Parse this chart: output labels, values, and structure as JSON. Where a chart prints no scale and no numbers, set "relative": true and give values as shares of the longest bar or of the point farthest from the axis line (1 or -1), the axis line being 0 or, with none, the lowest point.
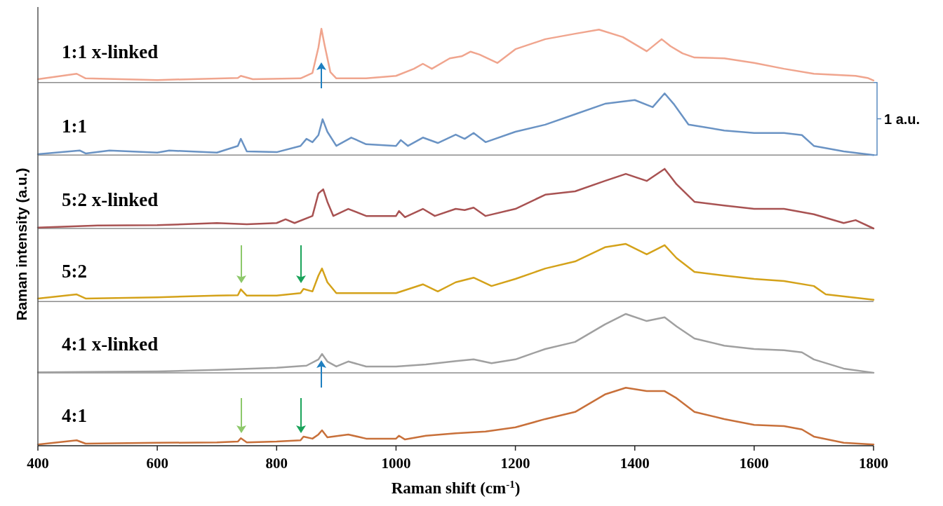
{
  "chart_data": {
    "type": "line",
    "relative": true,
    "xlabel": "Raman shift (cm$^{-1}$)",
    "ylabel": "Raman intensity (a.u.)",
    "xlim": [
      400,
      1800
    ],
    "xticks": [
      400,
      600,
      800,
      1000,
      1200,
      1400,
      1600,
      1800
    ],
    "grid": false,
    "legend": false,
    "marker": "none",
    "line_style": "solid",
    "annotations": [
      "1 a.u."
    ],
    "ref_lines": [
      {
        "axis": "y",
        "value": 0.871,
        "color": "#8c8c8c"
      },
      {
        "axis": "y",
        "value": 0.697,
        "color": "#8c8c8c"
      },
      {
        "axis": "y",
        "value": 0.521,
        "color": "#8c8c8c"
      },
      {
        "axis": "y",
        "value": 0.346,
        "color": "#8c8c8c"
      },
      {
        "axis": "y",
        "value": 0.175,
        "color": "#8c8c8c"
      }
    ],
    "series": [
      {
        "name": "1:1 x-linked",
        "color": "#f0a58e",
        "x": [
          400,
          465,
          480,
          600,
          735,
          740,
          760,
          840,
          860,
          870,
          875,
          880,
          890,
          900,
          950,
          1000,
          1030,
          1045,
          1060,
          1090,
          1110,
          1125,
          1140,
          1170,
          1200,
          1250,
          1300,
          1340,
          1380,
          1420,
          1445,
          1460,
          1480,
          1500,
          1550,
          1600,
          1650,
          1700,
          1770,
          1790,
          1800
        ],
        "values": [
          0.879,
          0.892,
          0.881,
          0.877,
          0.882,
          0.887,
          0.879,
          0.881,
          0.894,
          0.955,
          1,
          0.963,
          0.896,
          0.881,
          0.881,
          0.887,
          0.904,
          0.916,
          0.904,
          0.929,
          0.934,
          0.945,
          0.938,
          0.918,
          0.951,
          0.975,
          0.988,
          0.998,
          0.98,
          0.946,
          0.975,
          0.958,
          0.941,
          0.931,
          0.929,
          0.918,
          0.904,
          0.892,
          0.887,
          0.882,
          0.876
        ]
      },
      {
        "name": "1:1",
        "color": "#6a93c4",
        "x": [
          400,
          470,
          480,
          520,
          600,
          620,
          700,
          735,
          740,
          750,
          800,
          840,
          850,
          860,
          870,
          877,
          885,
          900,
          925,
          950,
          1000,
          1008,
          1020,
          1045,
          1070,
          1100,
          1115,
          1130,
          1150,
          1200,
          1250,
          1300,
          1350,
          1400,
          1430,
          1450,
          1465,
          1490,
          1550,
          1600,
          1650,
          1680,
          1700,
          1750,
          1800
        ],
        "values": [
          0.699,
          0.708,
          0.701,
          0.708,
          0.703,
          0.708,
          0.703,
          0.719,
          0.736,
          0.706,
          0.704,
          0.719,
          0.736,
          0.728,
          0.745,
          0.783,
          0.753,
          0.719,
          0.739,
          0.723,
          0.719,
          0.733,
          0.719,
          0.739,
          0.726,
          0.746,
          0.736,
          0.75,
          0.728,
          0.753,
          0.77,
          0.795,
          0.82,
          0.829,
          0.812,
          0.845,
          0.82,
          0.77,
          0.756,
          0.75,
          0.75,
          0.745,
          0.719,
          0.706,
          0.697
        ]
      },
      {
        "name": "5:2 x-linked",
        "color": "#a85252",
        "x": [
          400,
          500,
          600,
          700,
          750,
          800,
          815,
          830,
          860,
          870,
          878,
          885,
          895,
          920,
          950,
          1000,
          1005,
          1015,
          1045,
          1065,
          1100,
          1115,
          1130,
          1150,
          1200,
          1250,
          1300,
          1350,
          1385,
          1420,
          1450,
          1470,
          1500,
          1550,
          1600,
          1650,
          1700,
          1750,
          1770,
          1800
        ],
        "values": [
          0.523,
          0.528,
          0.529,
          0.534,
          0.531,
          0.534,
          0.543,
          0.534,
          0.551,
          0.605,
          0.615,
          0.585,
          0.551,
          0.568,
          0.551,
          0.551,
          0.563,
          0.548,
          0.568,
          0.551,
          0.568,
          0.565,
          0.571,
          0.551,
          0.568,
          0.602,
          0.61,
          0.635,
          0.652,
          0.635,
          0.664,
          0.627,
          0.585,
          0.576,
          0.568,
          0.568,
          0.555,
          0.534,
          0.541,
          0.521
        ]
      },
      {
        "name": "5:2",
        "color": "#d4a21a",
        "x": [
          400,
          465,
          480,
          600,
          700,
          735,
          740,
          750,
          800,
          840,
          845,
          860,
          870,
          876,
          885,
          900,
          950,
          1000,
          1045,
          1070,
          1100,
          1130,
          1160,
          1200,
          1250,
          1300,
          1350,
          1385,
          1420,
          1450,
          1470,
          1500,
          1550,
          1600,
          1650,
          1700,
          1720,
          1800
        ],
        "values": [
          0.353,
          0.363,
          0.353,
          0.356,
          0.36,
          0.361,
          0.375,
          0.36,
          0.36,
          0.366,
          0.376,
          0.37,
          0.408,
          0.425,
          0.392,
          0.366,
          0.366,
          0.366,
          0.387,
          0.37,
          0.392,
          0.403,
          0.383,
          0.4,
          0.425,
          0.442,
          0.476,
          0.484,
          0.459,
          0.481,
          0.45,
          0.417,
          0.408,
          0.4,
          0.395,
          0.383,
          0.363,
          0.35
        ]
      },
      {
        "name": "4:1 x-linked",
        "color": "#a0a0a0",
        "x": [
          400,
          600,
          700,
          800,
          850,
          870,
          876,
          885,
          900,
          920,
          950,
          1000,
          1050,
          1100,
          1130,
          1160,
          1200,
          1250,
          1300,
          1350,
          1385,
          1420,
          1450,
          1470,
          1500,
          1550,
          1600,
          1650,
          1680,
          1700,
          1750,
          1800
        ],
        "values": [
          0.176,
          0.178,
          0.182,
          0.187,
          0.192,
          0.207,
          0.22,
          0.202,
          0.19,
          0.202,
          0.19,
          0.19,
          0.195,
          0.203,
          0.207,
          0.198,
          0.207,
          0.232,
          0.249,
          0.291,
          0.316,
          0.299,
          0.308,
          0.286,
          0.257,
          0.24,
          0.232,
          0.229,
          0.224,
          0.207,
          0.185,
          0.175
        ]
      },
      {
        "name": "4:1",
        "color": "#c8703a",
        "x": [
          400,
          465,
          480,
          600,
          700,
          735,
          740,
          750,
          800,
          840,
          845,
          860,
          870,
          876,
          885,
          920,
          950,
          1000,
          1005,
          1015,
          1050,
          1100,
          1150,
          1200,
          1250,
          1300,
          1350,
          1385,
          1420,
          1450,
          1470,
          1500,
          1550,
          1600,
          1650,
          1680,
          1700,
          1750,
          1800
        ],
        "values": [
          0.003,
          0.013,
          0.005,
          0.007,
          0.008,
          0.01,
          0.018,
          0.008,
          0.01,
          0.013,
          0.022,
          0.017,
          0.027,
          0.037,
          0.02,
          0.027,
          0.017,
          0.017,
          0.024,
          0.015,
          0.024,
          0.03,
          0.034,
          0.044,
          0.064,
          0.081,
          0.123,
          0.139,
          0.131,
          0.131,
          0.114,
          0.081,
          0.064,
          0.05,
          0.047,
          0.039,
          0.022,
          0.007,
          0.003
        ]
      }
    ]
  }
}
